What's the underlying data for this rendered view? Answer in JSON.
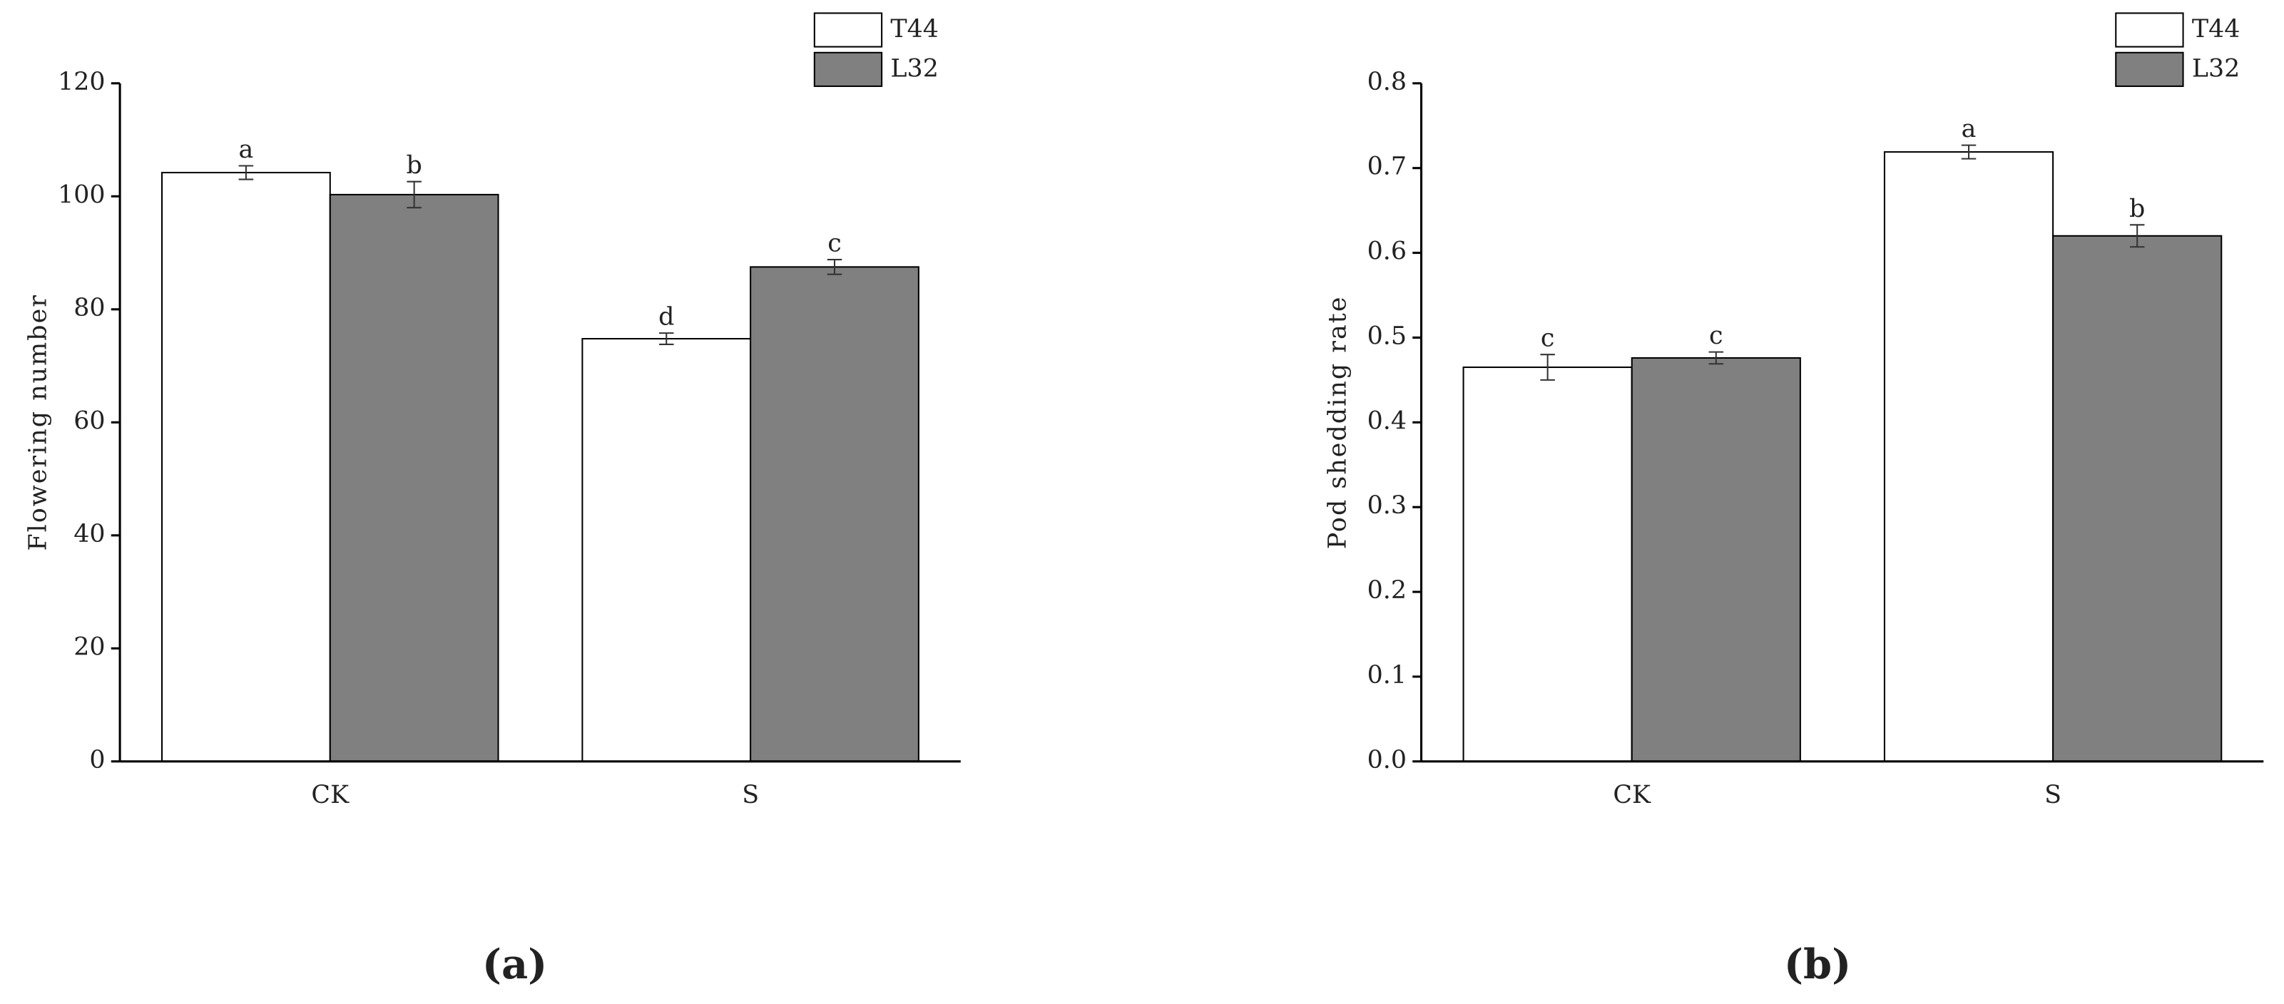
{
  "chart_data": [
    {
      "type": "bar",
      "panel_label": "(a)",
      "y_label": "Flowering number",
      "categories": [
        "CK",
        "S"
      ],
      "series": [
        {
          "name": "T44",
          "color": "#ffffff",
          "values": [
            104.2,
            74.8
          ],
          "errors": [
            1.2,
            1.0
          ],
          "letters": [
            "a",
            "d"
          ]
        },
        {
          "name": "L32",
          "color": "#808080",
          "values": [
            100.3,
            87.5
          ],
          "errors": [
            2.3,
            1.3
          ],
          "letters": [
            "b",
            "c"
          ]
        }
      ],
      "ylim": [
        0,
        120
      ],
      "yticks": [
        0,
        20,
        40,
        60,
        80,
        100,
        120
      ],
      "grid": false
    },
    {
      "type": "bar",
      "panel_label": "(b)",
      "y_label": "Pod shedding rate",
      "categories": [
        "CK",
        "S"
      ],
      "series": [
        {
          "name": "T44",
          "color": "#ffffff",
          "values": [
            0.465,
            0.719
          ],
          "errors": [
            0.015,
            0.008
          ],
          "letters": [
            "c",
            "a"
          ]
        },
        {
          "name": "L32",
          "color": "#808080",
          "values": [
            0.476,
            0.62
          ],
          "errors": [
            0.007,
            0.013
          ],
          "letters": [
            "c",
            "b"
          ]
        }
      ],
      "ylim": [
        0,
        0.8
      ],
      "yticks": [
        {
          "value": 0,
          "label": "0.0"
        },
        0.1,
        0.2,
        0.3,
        0.4,
        0.5,
        0.6,
        0.7,
        0.8
      ],
      "grid": false
    }
  ]
}
